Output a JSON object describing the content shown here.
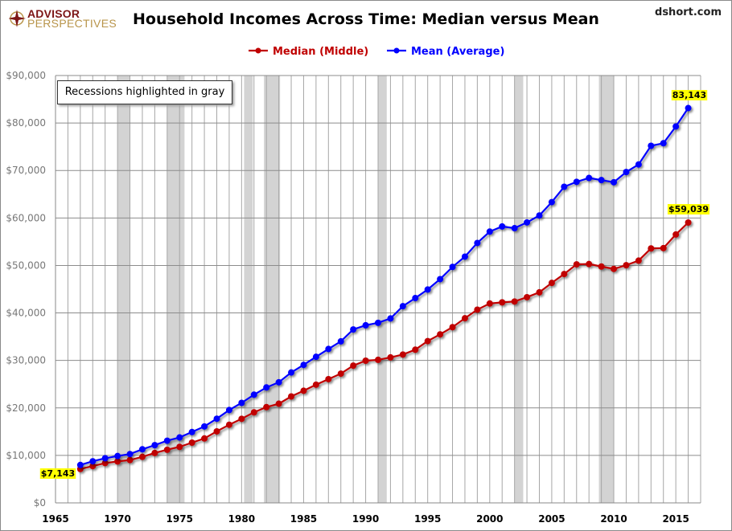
{
  "header": {
    "logo_line1": "ADVISOR",
    "logo_line2": "PERSPECTIVES",
    "site": "dshort.com"
  },
  "chart_data": {
    "type": "line",
    "title": "Household Incomes Across Time: Median versus Mean",
    "xlabel": "",
    "ylabel": "",
    "xlim": [
      1965,
      2017
    ],
    "ylim": [
      0,
      90000
    ],
    "xticks": [
      1965,
      1970,
      1975,
      1980,
      1985,
      1990,
      1995,
      2000,
      2005,
      2010,
      2015
    ],
    "xtick_labels": [
      "1965",
      "1970",
      "1975",
      "1980",
      "1985",
      "1990",
      "1995",
      "2000",
      "2005",
      "2010",
      "2015"
    ],
    "yticks": [
      0,
      10000,
      20000,
      30000,
      40000,
      50000,
      60000,
      70000,
      80000,
      90000
    ],
    "ytick_labels": [
      "$0",
      "$10,000",
      "$20,000",
      "$30,000",
      "$40,000",
      "$50,000",
      "$60,000",
      "$70,000",
      "$80,000",
      "$90,000"
    ],
    "grid": true,
    "legend_position": "top-center",
    "x": [
      1967,
      1968,
      1969,
      1970,
      1971,
      1972,
      1973,
      1974,
      1975,
      1976,
      1977,
      1978,
      1979,
      1980,
      1981,
      1982,
      1983,
      1984,
      1985,
      1986,
      1987,
      1988,
      1989,
      1990,
      1991,
      1992,
      1993,
      1994,
      1995,
      1996,
      1997,
      1998,
      1999,
      2000,
      2001,
      2002,
      2003,
      2004,
      2005,
      2006,
      2007,
      2008,
      2009,
      2010,
      2011,
      2012,
      2013,
      2014,
      2015,
      2016
    ],
    "series": [
      {
        "name": "Median (Middle)",
        "color": "#c00000",
        "values": [
          7143,
          7743,
          8389,
          8734,
          9028,
          9697,
          10512,
          11197,
          11800,
          12686,
          13572,
          15064,
          16461,
          17710,
          19074,
          20171,
          20885,
          22415,
          23618,
          24897,
          26061,
          27225,
          28906,
          29943,
          30126,
          30636,
          31241,
          32264,
          34076,
          35492,
          37005,
          38885,
          40696,
          41990,
          42228,
          42409,
          43318,
          44334,
          46326,
          48201,
          50233,
          50303,
          49777,
          49276,
          50054,
          51017,
          53585,
          53657,
          56516,
          59039
        ]
      },
      {
        "name": "Mean (Average)",
        "color": "#0000ff",
        "values": [
          7989,
          8760,
          9407,
          9867,
          10285,
          11286,
          12157,
          13094,
          13779,
          14922,
          16100,
          17730,
          19554,
          21063,
          22787,
          24309,
          25401,
          27464,
          29066,
          30759,
          32410,
          34017,
          36520,
          37403,
          37922,
          38840,
          41428,
          43133,
          44938,
          47123,
          49692,
          51855,
          54737,
          57135,
          58208,
          57852,
          59067,
          60528,
          63344,
          66570,
          67609,
          68424,
          67976,
          67530,
          69677,
          71274,
          75195,
          75738,
          79263,
          83143
        ]
      }
    ],
    "recessions": [
      [
        1970,
        1971
      ],
      [
        1974,
        1975.4
      ],
      [
        1980.2,
        1980.9
      ],
      [
        1981.8,
        1983.1
      ],
      [
        1991,
        1991.7
      ],
      [
        2002,
        2002.7
      ],
      [
        2008.8,
        2010
      ]
    ],
    "annotations": {
      "median_first": "$7,143",
      "mean_last": "83,143",
      "median_last": "$59,039",
      "recession_note": "Recessions highlighted in gray"
    }
  }
}
